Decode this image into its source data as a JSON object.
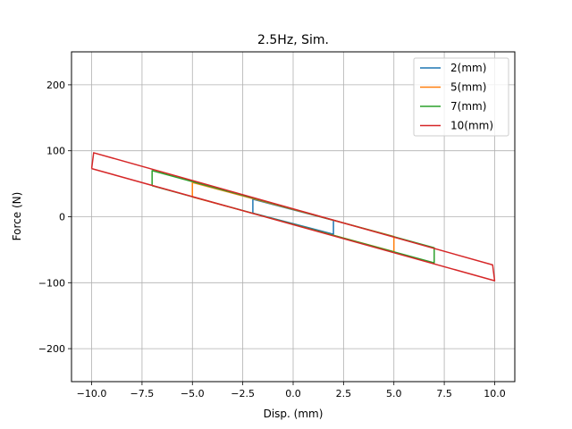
{
  "chart_data": {
    "type": "line",
    "title": "2.5Hz, Sim.",
    "xlabel": "Disp. (mm)",
    "ylabel": "Force (N)",
    "xlim": [
      -11,
      11
    ],
    "ylim": [
      -250,
      250
    ],
    "xticks": [
      -10,
      -7.5,
      -5,
      -2.5,
      0,
      2.5,
      5,
      7.5,
      10
    ],
    "xtick_labels": [
      "−10.0",
      "−7.5",
      "−5.0",
      "−2.5",
      "0.0",
      "2.5",
      "5.0",
      "7.5",
      "10.0"
    ],
    "yticks": [
      -200,
      -100,
      0,
      100,
      200
    ],
    "ytick_labels": [
      "−200",
      "−100",
      "0",
      "100",
      "200"
    ],
    "grid": true,
    "legend_position": "top-right",
    "series": [
      {
        "name": "2(mm)",
        "color": "#1f77b4",
        "points": [
          [
            -2,
            5.5
          ],
          [
            -2,
            26.5
          ],
          [
            2,
            -5.5
          ],
          [
            2,
            -26.5
          ],
          [
            -2,
            5.5
          ]
        ]
      },
      {
        "name": "5(mm)",
        "color": "#ff7f0e",
        "points": [
          [
            -5,
            30
          ],
          [
            -5,
            52
          ],
          [
            5,
            -30
          ],
          [
            5,
            -53
          ],
          [
            -5,
            30
          ]
        ]
      },
      {
        "name": "7(mm)",
        "color": "#2ca02c",
        "points": [
          [
            -7,
            47
          ],
          [
            -7,
            70
          ],
          [
            7,
            -47
          ],
          [
            7,
            -70
          ],
          [
            -7,
            47
          ]
        ]
      },
      {
        "name": "10(mm)",
        "color": "#d62728",
        "points": [
          [
            -10,
            73
          ],
          [
            -9.9,
            97
          ],
          [
            9.9,
            -73
          ],
          [
            10,
            -97
          ],
          [
            -10,
            73
          ]
        ]
      }
    ]
  }
}
